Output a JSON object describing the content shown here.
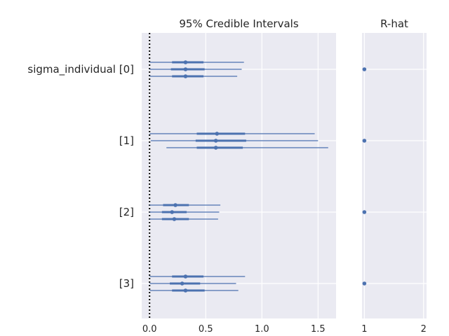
{
  "chart_data": [
    {
      "type": "forest",
      "title": "95% Credible Intervals",
      "xlim": [
        -0.07,
        1.66
      ],
      "xticks": [
        0.0,
        0.5,
        1.0,
        1.5
      ],
      "xtick_labels": [
        "0.0",
        "0.5",
        "1.0",
        "1.5"
      ],
      "reference_line": 0.0,
      "color": "#4c72b0",
      "parameters": [
        {
          "label": "sigma_individual [0]",
          "chains": [
            {
              "lo": 0.0,
              "q25": 0.2,
              "median": 0.32,
              "q75": 0.48,
              "hi": 0.84
            },
            {
              "lo": 0.0,
              "q25": 0.19,
              "median": 0.32,
              "q75": 0.49,
              "hi": 0.82
            },
            {
              "lo": 0.0,
              "q25": 0.2,
              "median": 0.32,
              "q75": 0.48,
              "hi": 0.78
            }
          ]
        },
        {
          "label": "[1]",
          "chains": [
            {
              "lo": 0.0,
              "q25": 0.42,
              "median": 0.6,
              "q75": 0.85,
              "hi": 1.47
            },
            {
              "lo": 0.01,
              "q25": 0.41,
              "median": 0.59,
              "q75": 0.86,
              "hi": 1.5
            },
            {
              "lo": 0.15,
              "q25": 0.42,
              "median": 0.59,
              "q75": 0.83,
              "hi": 1.59
            }
          ]
        },
        {
          "label": "[2]",
          "chains": [
            {
              "lo": 0.0,
              "q25": 0.12,
              "median": 0.23,
              "q75": 0.35,
              "hi": 0.63
            },
            {
              "lo": 0.0,
              "q25": 0.11,
              "median": 0.2,
              "q75": 0.33,
              "hi": 0.62
            },
            {
              "lo": 0.0,
              "q25": 0.11,
              "median": 0.22,
              "q75": 0.35,
              "hi": 0.61
            }
          ]
        },
        {
          "label": "[3]",
          "chains": [
            {
              "lo": 0.0,
              "q25": 0.2,
              "median": 0.32,
              "q75": 0.48,
              "hi": 0.85
            },
            {
              "lo": 0.0,
              "q25": 0.18,
              "median": 0.29,
              "q75": 0.45,
              "hi": 0.77
            },
            {
              "lo": 0.0,
              "q25": 0.2,
              "median": 0.32,
              "q75": 0.49,
              "hi": 0.79
            }
          ]
        }
      ]
    },
    {
      "type": "scatter",
      "title": "R-hat",
      "xlim": [
        0.96,
        2.05
      ],
      "xticks": [
        1,
        2
      ],
      "xtick_labels": [
        "1",
        "2"
      ],
      "color": "#4c72b0",
      "values": [
        1.0,
        1.0,
        1.0,
        1.0
      ]
    }
  ]
}
